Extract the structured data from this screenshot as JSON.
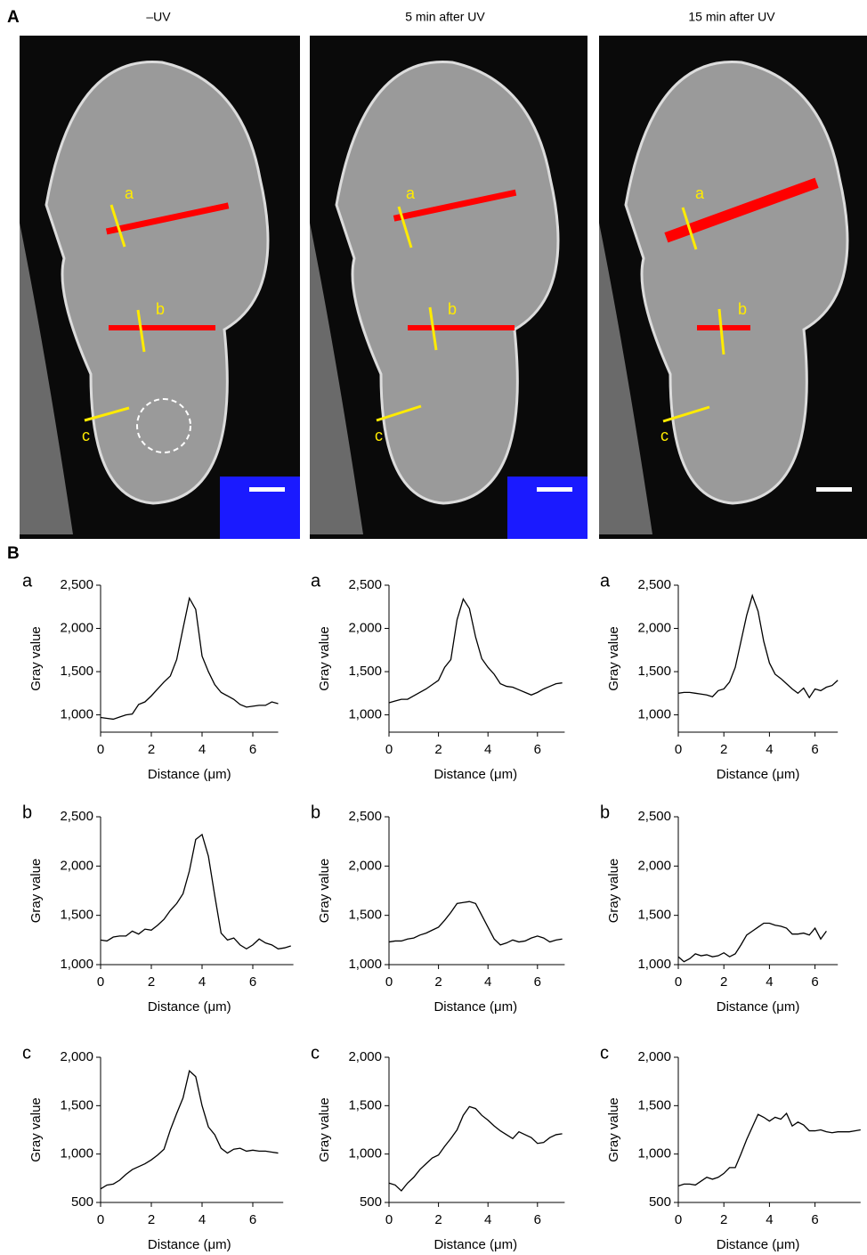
{
  "figure": {
    "panel_a": "A",
    "panel_b": "B",
    "columns": [
      "–UV",
      "5 min after UV",
      "15 min after UV"
    ],
    "line_labels": [
      "a",
      "b",
      "c"
    ]
  },
  "chart_data": [
    {
      "type": "line",
      "title": "a",
      "x_label": "Distance (μm)",
      "y_label": "Gray value",
      "x": [
        0,
        0.25,
        0.5,
        0.75,
        1,
        1.25,
        1.5,
        1.75,
        2,
        2.25,
        2.5,
        2.75,
        3,
        3.25,
        3.5,
        3.75,
        4,
        4.25,
        4.5,
        4.75,
        5,
        5.25,
        5.5,
        5.75,
        6,
        6.25,
        6.5,
        6.75,
        7
      ],
      "series": [
        {
          "name": "a",
          "color": "#000000",
          "values": [
            970,
            960,
            950,
            975,
            1000,
            1010,
            1120,
            1150,
            1220,
            1300,
            1380,
            1450,
            1640,
            2000,
            2350,
            2220,
            1680,
            1500,
            1350,
            1260,
            1220,
            1180,
            1120,
            1090,
            1100,
            1110,
            1110,
            1150,
            1130
          ]
        }
      ],
      "xlim": [
        0,
        7
      ],
      "xticks": [
        0,
        2,
        4,
        6
      ],
      "ylim": [
        800,
        2500
      ],
      "yticks": [
        {
          "value": 1000,
          "label": "1,000"
        },
        {
          "value": 1500,
          "label": "1,500"
        },
        {
          "value": 2000,
          "label": "2,000"
        },
        {
          "value": 2500,
          "label": "2,500"
        }
      ]
    },
    {
      "type": "line",
      "title": "a",
      "x_label": "Distance (μm)",
      "y_label": "Gray value",
      "x": [
        0,
        0.25,
        0.5,
        0.75,
        1,
        1.25,
        1.5,
        1.75,
        2,
        2.25,
        2.5,
        2.75,
        3,
        3.25,
        3.5,
        3.75,
        4,
        4.25,
        4.5,
        4.75,
        5,
        5.25,
        5.5,
        5.75,
        6,
        6.25,
        6.5,
        6.75,
        7
      ],
      "series": [
        {
          "name": "a",
          "color": "#000000",
          "values": [
            1140,
            1160,
            1180,
            1180,
            1220,
            1260,
            1300,
            1350,
            1400,
            1550,
            1640,
            2100,
            2340,
            2230,
            1900,
            1650,
            1550,
            1470,
            1360,
            1330,
            1320,
            1290,
            1260,
            1230,
            1260,
            1300,
            1330,
            1360,
            1370
          ]
        }
      ],
      "xlim": [
        0,
        7.1
      ],
      "xticks": [
        0,
        2,
        4,
        6
      ],
      "ylim": [
        800,
        2500
      ],
      "yticks": [
        {
          "value": 1000,
          "label": "1,000"
        },
        {
          "value": 1500,
          "label": "1,500"
        },
        {
          "value": 2000,
          "label": "2,000"
        },
        {
          "value": 2500,
          "label": "2,500"
        }
      ]
    },
    {
      "type": "line",
      "title": "a",
      "x_label": "Distance (μm)",
      "y_label": "Gray value",
      "x": [
        0,
        0.25,
        0.5,
        0.75,
        1,
        1.25,
        1.5,
        1.75,
        2,
        2.25,
        2.5,
        2.75,
        3,
        3.25,
        3.5,
        3.75,
        4,
        4.25,
        4.5,
        4.75,
        5,
        5.25,
        5.5,
        5.75,
        6,
        6.25,
        6.5,
        6.75,
        7
      ],
      "series": [
        {
          "name": "a",
          "color": "#000000",
          "values": [
            1250,
            1260,
            1260,
            1250,
            1240,
            1230,
            1210,
            1280,
            1300,
            1380,
            1550,
            1850,
            2150,
            2380,
            2200,
            1850,
            1600,
            1470,
            1420,
            1360,
            1300,
            1250,
            1310,
            1200,
            1300,
            1280,
            1320,
            1340,
            1400
          ]
        }
      ],
      "xlim": [
        0,
        7
      ],
      "xticks": [
        0,
        2,
        4,
        6
      ],
      "ylim": [
        800,
        2500
      ],
      "yticks": [
        {
          "value": 1000,
          "label": "1,000"
        },
        {
          "value": 1500,
          "label": "1,500"
        },
        {
          "value": 2000,
          "label": "2,000"
        },
        {
          "value": 2500,
          "label": "2,500"
        }
      ]
    },
    {
      "type": "line",
      "title": "b",
      "x_label": "Distance (μm)",
      "y_label": "Gray value",
      "x": [
        0,
        0.25,
        0.5,
        0.75,
        1,
        1.25,
        1.5,
        1.75,
        2,
        2.25,
        2.5,
        2.75,
        3,
        3.25,
        3.5,
        3.75,
        4,
        4.25,
        4.5,
        4.75,
        5,
        5.25,
        5.5,
        5.75,
        6,
        6.25,
        6.5,
        6.75,
        7,
        7.25,
        7.5
      ],
      "series": [
        {
          "name": "b",
          "color": "#000000",
          "values": [
            1250,
            1240,
            1280,
            1290,
            1290,
            1340,
            1310,
            1360,
            1350,
            1400,
            1460,
            1550,
            1620,
            1720,
            1950,
            2270,
            2320,
            2100,
            1700,
            1320,
            1250,
            1270,
            1200,
            1160,
            1200,
            1260,
            1220,
            1200,
            1160,
            1170,
            1190
          ]
        }
      ],
      "xlim": [
        0,
        7.6
      ],
      "xticks": [
        0,
        2,
        4,
        6
      ],
      "ylim": [
        1000,
        2500
      ],
      "yticks": [
        {
          "value": 1000,
          "label": "1,000"
        },
        {
          "value": 1500,
          "label": "1,500"
        },
        {
          "value": 2000,
          "label": "2,000"
        },
        {
          "value": 2500,
          "label": "2,500"
        }
      ]
    },
    {
      "type": "line",
      "title": "b",
      "x_label": "Distance (μm)",
      "y_label": "Gray value",
      "x": [
        0,
        0.25,
        0.5,
        0.75,
        1,
        1.25,
        1.5,
        1.75,
        2,
        2.25,
        2.5,
        2.75,
        3,
        3.25,
        3.5,
        3.75,
        4,
        4.25,
        4.5,
        4.75,
        5,
        5.25,
        5.5,
        5.75,
        6,
        6.25,
        6.5,
        6.75,
        7
      ],
      "series": [
        {
          "name": "b",
          "color": "#000000",
          "values": [
            1230,
            1240,
            1240,
            1260,
            1270,
            1300,
            1320,
            1350,
            1380,
            1450,
            1530,
            1620,
            1630,
            1640,
            1620,
            1500,
            1380,
            1260,
            1200,
            1220,
            1250,
            1230,
            1240,
            1270,
            1290,
            1270,
            1230,
            1250,
            1260
          ]
        }
      ],
      "xlim": [
        0,
        7.1
      ],
      "xticks": [
        0,
        2,
        4,
        6
      ],
      "ylim": [
        1000,
        2500
      ],
      "yticks": [
        {
          "value": 1000,
          "label": "1,000"
        },
        {
          "value": 1500,
          "label": "1,500"
        },
        {
          "value": 2000,
          "label": "2,000"
        },
        {
          "value": 2500,
          "label": "2,500"
        }
      ]
    },
    {
      "type": "line",
      "title": "b",
      "x_label": "Distance (μm)",
      "y_label": "Gray value",
      "x": [
        0,
        0.25,
        0.5,
        0.75,
        1,
        1.25,
        1.5,
        1.75,
        2,
        2.25,
        2.5,
        2.75,
        3,
        3.25,
        3.5,
        3.75,
        4,
        4.25,
        4.5,
        4.75,
        5,
        5.25,
        5.5,
        5.75,
        6,
        6.25,
        6.5
      ],
      "series": [
        {
          "name": "b",
          "color": "#000000",
          "values": [
            1080,
            1030,
            1060,
            1110,
            1090,
            1100,
            1080,
            1090,
            1120,
            1080,
            1110,
            1200,
            1300,
            1340,
            1380,
            1420,
            1420,
            1400,
            1390,
            1370,
            1310,
            1310,
            1320,
            1300,
            1370,
            1260,
            1340
          ]
        }
      ],
      "xlim": [
        0,
        7
      ],
      "xticks": [
        0,
        2,
        4,
        6
      ],
      "ylim": [
        1000,
        2500
      ],
      "yticks": [
        {
          "value": 1000,
          "label": "1,000"
        },
        {
          "value": 1500,
          "label": "1,500"
        },
        {
          "value": 2000,
          "label": "2,000"
        },
        {
          "value": 2500,
          "label": "2,500"
        }
      ]
    },
    {
      "type": "line",
      "title": "c",
      "x_label": "Distance (μm)",
      "y_label": "Gray value",
      "x": [
        0,
        0.25,
        0.5,
        0.75,
        1,
        1.25,
        1.5,
        1.75,
        2,
        2.25,
        2.5,
        2.75,
        3,
        3.25,
        3.5,
        3.75,
        4,
        4.25,
        4.5,
        4.75,
        5,
        5.25,
        5.5,
        5.75,
        6,
        6.25,
        6.5,
        6.75,
        7
      ],
      "series": [
        {
          "name": "c",
          "color": "#000000",
          "values": [
            640,
            680,
            690,
            730,
            790,
            840,
            870,
            900,
            940,
            990,
            1050,
            1250,
            1420,
            1580,
            1860,
            1800,
            1500,
            1280,
            1200,
            1060,
            1010,
            1050,
            1060,
            1030,
            1040,
            1030,
            1030,
            1020,
            1010
          ]
        }
      ],
      "xlim": [
        0,
        7.2
      ],
      "xticks": [
        0,
        2,
        4,
        6
      ],
      "ylim": [
        500,
        2000
      ],
      "yticks": [
        {
          "value": 500,
          "label": "500"
        },
        {
          "value": 1000,
          "label": "1,000"
        },
        {
          "value": 1500,
          "label": "1,500"
        },
        {
          "value": 2000,
          "label": "2,000"
        }
      ]
    },
    {
      "type": "line",
      "title": "c",
      "x_label": "Distance (μm)",
      "y_label": "Gray value",
      "x": [
        0,
        0.25,
        0.5,
        0.75,
        1,
        1.25,
        1.5,
        1.75,
        2,
        2.25,
        2.5,
        2.75,
        3,
        3.25,
        3.5,
        3.75,
        4,
        4.25,
        4.5,
        4.75,
        5,
        5.25,
        5.5,
        5.75,
        6,
        6.25,
        6.5,
        6.75,
        7
      ],
      "series": [
        {
          "name": "c",
          "color": "#000000",
          "values": [
            700,
            680,
            620,
            700,
            760,
            840,
            900,
            960,
            990,
            1080,
            1160,
            1250,
            1400,
            1490,
            1470,
            1400,
            1350,
            1290,
            1240,
            1200,
            1160,
            1230,
            1200,
            1170,
            1110,
            1120,
            1170,
            1200,
            1210
          ]
        }
      ],
      "xlim": [
        0,
        7.1
      ],
      "xticks": [
        0,
        2,
        4,
        6
      ],
      "ylim": [
        500,
        2000
      ],
      "yticks": [
        {
          "value": 500,
          "label": "500"
        },
        {
          "value": 1000,
          "label": "1,000"
        },
        {
          "value": 1500,
          "label": "1,500"
        },
        {
          "value": 2000,
          "label": "2,000"
        }
      ]
    },
    {
      "type": "line",
      "title": "c",
      "x_label": "Distance (μm)",
      "y_label": "Gray value",
      "x": [
        0,
        0.25,
        0.5,
        0.75,
        1,
        1.25,
        1.5,
        1.75,
        2,
        2.25,
        2.5,
        2.75,
        3,
        3.25,
        3.5,
        3.75,
        4,
        4.25,
        4.5,
        4.75,
        5,
        5.25,
        5.5,
        5.75,
        6,
        6.25,
        6.5,
        6.75,
        7,
        7.25,
        7.5,
        7.75,
        8
      ],
      "series": [
        {
          "name": "c",
          "color": "#000000",
          "values": [
            670,
            690,
            690,
            680,
            720,
            760,
            740,
            760,
            800,
            860,
            860,
            1000,
            1150,
            1280,
            1410,
            1380,
            1340,
            1380,
            1360,
            1420,
            1290,
            1330,
            1300,
            1240,
            1240,
            1250,
            1230,
            1220,
            1230,
            1230,
            1230,
            1240,
            1250
          ]
        }
      ],
      "xlim": [
        0,
        8
      ],
      "xticks": [
        0,
        2,
        4,
        6
      ],
      "ylim": [
        500,
        2000
      ],
      "yticks": [
        {
          "value": 500,
          "label": "500"
        },
        {
          "value": 1000,
          "label": "1,000"
        },
        {
          "value": 1500,
          "label": "1,500"
        },
        {
          "value": 2000,
          "label": "2,000"
        }
      ]
    }
  ]
}
